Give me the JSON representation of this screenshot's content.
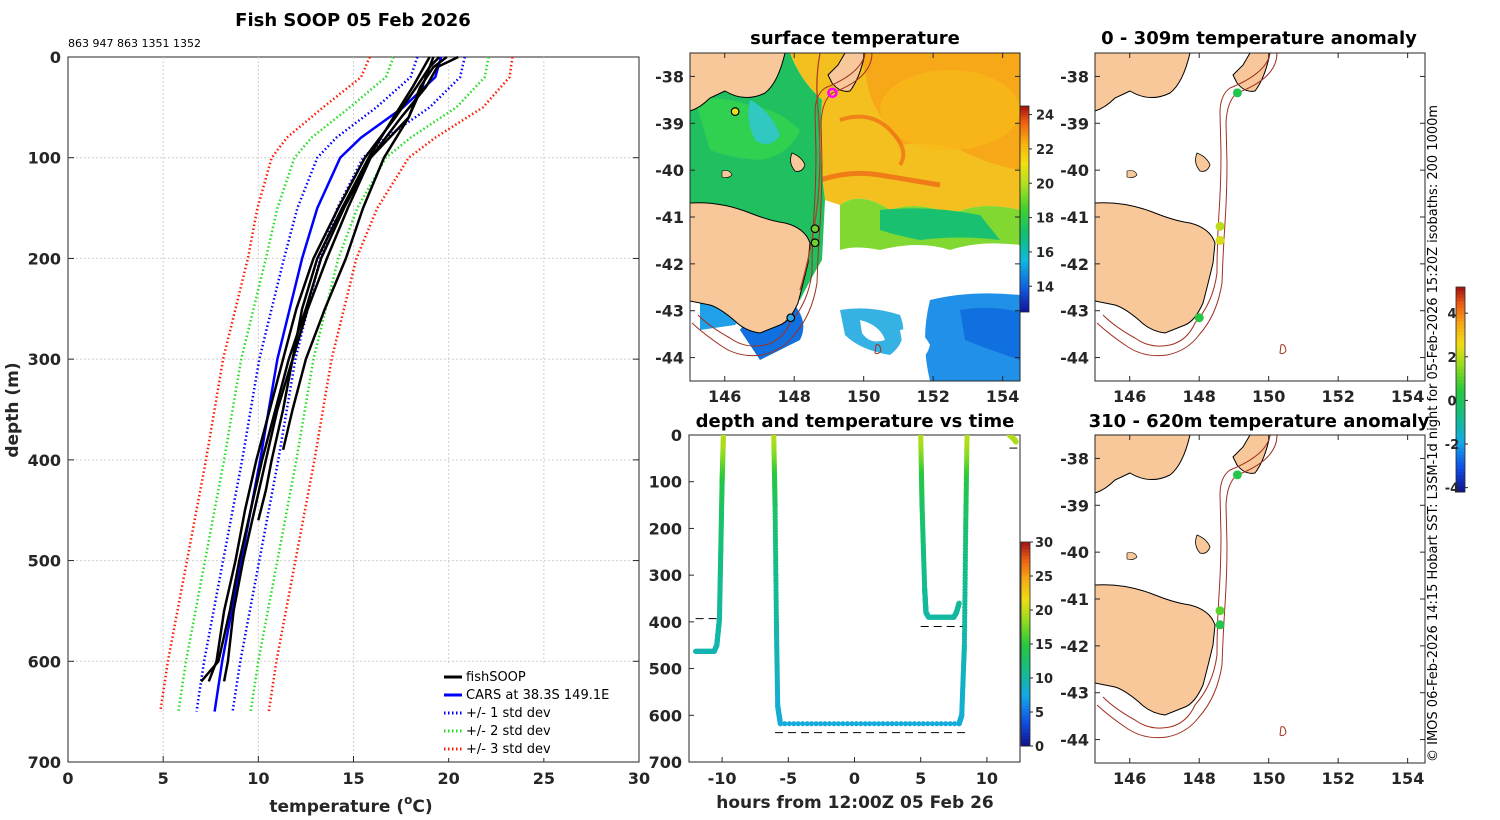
{
  "chart_data": [
    {
      "type": "line",
      "id": "profile",
      "title": "Fish SOOP 05 Feb 2026",
      "subtitle": "863 947 863 1351 1352",
      "xlabel": "temperature (",
      "xlabel_sup": "o",
      "xlabel_tail": "C)",
      "ylabel": "depth (m)",
      "xlim": [
        0,
        30
      ],
      "ylim": [
        700,
        0
      ],
      "xticks": [
        0,
        5,
        10,
        15,
        20,
        25,
        30
      ],
      "yticks": [
        0,
        100,
        200,
        300,
        400,
        500,
        600,
        700
      ],
      "legend": [
        "fishSOOP",
        "CARS at 38.3S 149.1E",
        "+/- 1 std dev",
        "+/- 2 std dev",
        "+/- 3 std dev"
      ],
      "cars": {
        "depth": [
          0,
          20,
          50,
          80,
          100,
          150,
          200,
          300,
          400,
          500,
          600,
          650
        ],
        "mean": [
          19.6,
          19.3,
          17.6,
          15.4,
          14.3,
          13.1,
          12.3,
          11.0,
          10.1,
          9.1,
          8.1,
          7.7
        ],
        "std": [
          1.25,
          1.3,
          1.4,
          1.3,
          1.2,
          1.05,
          0.95,
          0.95,
          0.95,
          0.95,
          0.95,
          0.95
        ]
      },
      "fishsoop": [
        {
          "depth": [
            0,
            10,
            30,
            60,
            100,
            150,
            200,
            250,
            300,
            350,
            400,
            450,
            500,
            550,
            600,
            620
          ],
          "temp": [
            20.5,
            19.4,
            18.8,
            17.5,
            15.9,
            14.5,
            13.3,
            12.5,
            11.6,
            10.9,
            10.2,
            9.6,
            9.0,
            8.5,
            7.9,
            7.0
          ]
        },
        {
          "depth": [
            0,
            10,
            30,
            60,
            100,
            150,
            200,
            250,
            300,
            350,
            400,
            450,
            500,
            550,
            600,
            620
          ],
          "temp": [
            19.9,
            19.2,
            18.5,
            17.9,
            15.9,
            14.7,
            13.6,
            12.6,
            11.8,
            11.0,
            10.4,
            9.8,
            9.2,
            8.7,
            8.4,
            8.2
          ]
        },
        {
          "depth": [
            0,
            10,
            30,
            60,
            100,
            150,
            200,
            250,
            300,
            350,
            390
          ],
          "temp": [
            19.2,
            19.0,
            18.6,
            17.9,
            16.6,
            15.5,
            14.6,
            13.5,
            12.5,
            11.8,
            11.3
          ]
        },
        {
          "depth": [
            0,
            10,
            30,
            60,
            100,
            150,
            200,
            250,
            300,
            350,
            400,
            430,
            460
          ],
          "temp": [
            19.0,
            18.7,
            18.1,
            17.1,
            15.8,
            14.4,
            13.1,
            12.3,
            11.8,
            11.3,
            10.7,
            10.4,
            10.0
          ]
        },
        {
          "depth": [
            0,
            10,
            30,
            60,
            100,
            150,
            200,
            250,
            300,
            350,
            400,
            450,
            500,
            550,
            600,
            620
          ],
          "temp": [
            19.5,
            19.0,
            18.3,
            17.2,
            15.6,
            14.2,
            12.9,
            12.0,
            11.3,
            10.6,
            9.9,
            9.3,
            8.8,
            8.2,
            7.8,
            7.4
          ]
        }
      ]
    },
    {
      "type": "heatmap",
      "id": "sst",
      "title": "surface temperature",
      "xlim": [
        145,
        154.5
      ],
      "ylim": [
        -44.5,
        -37.5
      ],
      "xticks": [
        146,
        148,
        150,
        152,
        154
      ],
      "yticks": [
        -38,
        -39,
        -40,
        -41,
        -42,
        -43,
        -44
      ],
      "colorbar": {
        "range": [
          12.5,
          24.5
        ],
        "ticks": [
          14,
          16,
          18,
          20,
          22,
          24
        ]
      },
      "stations": [
        {
          "lon": 149.1,
          "lat": -38.35
        },
        {
          "lon": 148.6,
          "lat": -41.25
        },
        {
          "lon": 148.6,
          "lat": -41.55
        },
        {
          "lon": 147.9,
          "lat": -43.15
        },
        {
          "lon": 146.3,
          "lat": -38.75
        }
      ]
    },
    {
      "type": "scatter",
      "id": "time",
      "title": "depth and temperature vs time",
      "xlabel": "hours from 12:00Z 05 Feb 26",
      "xlim": [
        -12.5,
        12.5
      ],
      "ylim": [
        700,
        0
      ],
      "xticks": [
        -10,
        -5,
        0,
        5,
        10
      ],
      "yticks": [
        0,
        100,
        200,
        300,
        400,
        500,
        600,
        700
      ],
      "colorbar": {
        "range": [
          0,
          30
        ],
        "ticks": [
          0,
          5,
          10,
          15,
          20,
          25,
          30
        ]
      },
      "bottom_depth_segments": [
        {
          "x0": -12.0,
          "x1": -10.2,
          "depth": 393
        },
        {
          "x0": -6.0,
          "x1": 8.5,
          "depth": 637
        },
        {
          "x0": 5.0,
          "x1": 8.5,
          "depth": 410
        },
        {
          "x0": 11.7,
          "x1": 12.3,
          "depth": 28
        }
      ],
      "tracks": [
        {
          "t": [
            -12.0,
            -10.6,
            -10.4,
            -10.2,
            -10.1,
            -10.0,
            -9.9
          ],
          "z": [
            463,
            463,
            450,
            393,
            250,
            100,
            0
          ]
        },
        {
          "t": [
            -6.1,
            -6.0,
            -5.9,
            -5.8,
            -5.6,
            7.9,
            8.1,
            8.3,
            8.4,
            8.5
          ],
          "z": [
            0,
            150,
            400,
            580,
            618,
            618,
            600,
            450,
            200,
            0
          ]
        },
        {
          "t": [
            5.0,
            5.1,
            5.3,
            5.4,
            5.6,
            7.5,
            7.7,
            7.9
          ],
          "z": [
            0,
            150,
            330,
            380,
            390,
            390,
            380,
            360
          ]
        },
        {
          "t": [
            11.7,
            11.9,
            12.1,
            12.2
          ],
          "z": [
            0,
            5,
            10,
            15
          ]
        }
      ]
    },
    {
      "type": "scatter",
      "id": "anom_shallow",
      "title": "0 - 309m temperature anomaly",
      "xlim": [
        145,
        154.5
      ],
      "ylim": [
        -44.5,
        -37.5
      ],
      "xticks": [
        146,
        148,
        150,
        152,
        154
      ],
      "yticks": [
        -38,
        -39,
        -40,
        -41,
        -42,
        -43,
        -44
      ],
      "points": [
        {
          "lon": 149.1,
          "lat": -38.35,
          "anomaly": 0.2
        },
        {
          "lon": 148.6,
          "lat": -41.2,
          "anomaly": 2.0
        },
        {
          "lon": 148.6,
          "lat": -41.5,
          "anomaly": 2.3
        },
        {
          "lon": 148.0,
          "lat": -43.15,
          "anomaly": 0.4
        }
      ]
    },
    {
      "type": "scatter",
      "id": "anom_deep",
      "title": "310 - 620m temperature anomaly",
      "xlim": [
        145,
        154.5
      ],
      "ylim": [
        -44.5,
        -37.5
      ],
      "xticks": [
        146,
        148,
        150,
        152,
        154
      ],
      "yticks": [
        -38,
        -39,
        -40,
        -41,
        -42,
        -43,
        -44
      ],
      "colorbar": {
        "range": [
          -4.2,
          5.2
        ],
        "ticks": [
          4,
          2,
          0,
          -2,
          -4
        ]
      },
      "points": [
        {
          "lon": 149.1,
          "lat": -38.35,
          "anomaly": 0.3
        },
        {
          "lon": 148.6,
          "lat": -41.25,
          "anomaly": 1.0
        },
        {
          "lon": 148.6,
          "lat": -41.55,
          "anomaly": 0.2
        }
      ]
    }
  ],
  "footnote": "© IMOS 06-Feb-2026 14:15 Hobart SST: L3SM-1d night for 05-Feb-2026 15:20Z isobaths: 200  1000m",
  "colors": {
    "fishsoop": "#000000",
    "cars": "#0000ff",
    "std1": "#0000ff",
    "std2": "#22dd22",
    "std3": "#ff1a00",
    "land": "#f8c89a",
    "isobath": "#a03020",
    "grid": "#d0d0d0",
    "magenta": "#ff00ff"
  }
}
